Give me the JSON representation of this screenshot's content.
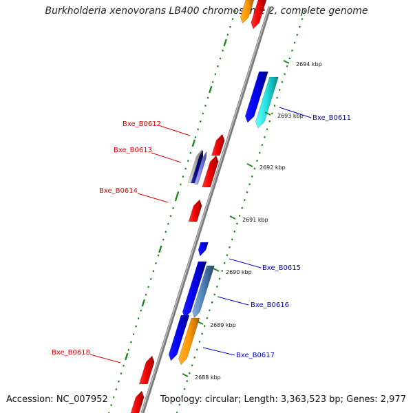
{
  "title": "Burkholderia xenovorans LB400 chromosome 2, complete genome",
  "footer": {
    "accession": "Accession: NC_007952",
    "topology": "Topology: circular; Length: 3,363,523 bp; Genes: 2,977"
  },
  "colors": {
    "backbone": "#888888",
    "tick": "#228822",
    "plus_label": "#0000cc",
    "minus_label": "#dd0000"
  },
  "scale_ticks": [
    "2694 kbp",
    "2693 kbp",
    "2692 kbp",
    "2691 kbp",
    "2690 kbp",
    "2689 kbp",
    "2688 kbp"
  ],
  "gene_labels": [
    {
      "name": "Bxe_B0611",
      "strand": "plus"
    },
    {
      "name": "Bxe_B0612",
      "strand": "minus"
    },
    {
      "name": "Bxe_B0613",
      "strand": "minus"
    },
    {
      "name": "Bxe_B0614",
      "strand": "minus"
    },
    {
      "name": "Bxe_B0615",
      "strand": "plus"
    },
    {
      "name": "Bxe_B0616",
      "strand": "plus"
    },
    {
      "name": "Bxe_B0617",
      "strand": "plus"
    },
    {
      "name": "Bxe_B0618",
      "strand": "minus"
    }
  ]
}
